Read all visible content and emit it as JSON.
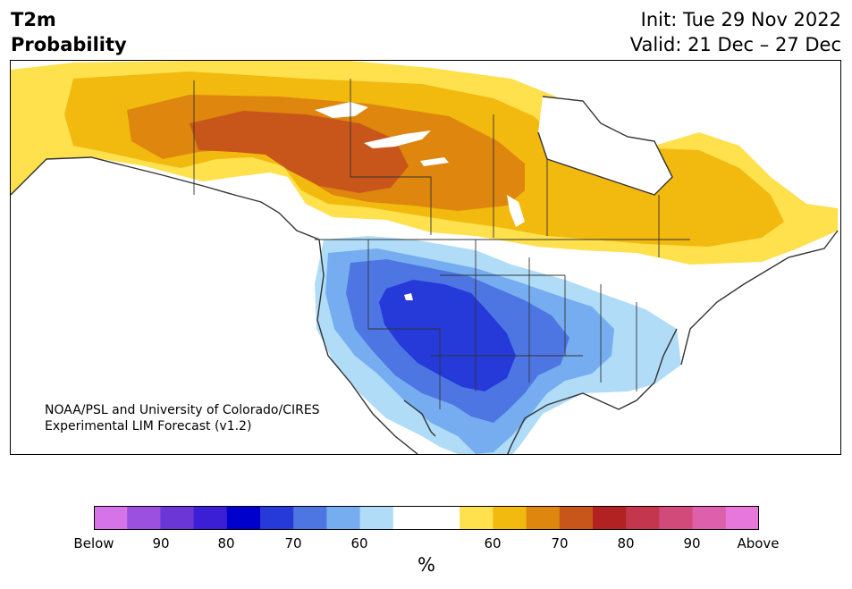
{
  "header": {
    "title_line1": "T2m",
    "title_line2": "Probability",
    "init": "Init: Tue 29 Nov 2022",
    "valid": "Valid: 21 Dec – 27 Dec"
  },
  "credit": {
    "line1": "NOAA/PSL and University of Colorado/CIRES",
    "line2": "Experimental LIM Forecast (v1.2)"
  },
  "colorbar": {
    "label": "%",
    "ticks": [
      "Below",
      "90",
      "80",
      "70",
      "60",
      "60",
      "70",
      "80",
      "90",
      "Above"
    ],
    "colors": [
      "#d673e8",
      "#9c50e0",
      "#6a37d6",
      "#3a1fd6",
      "#0000cc",
      "#2639d9",
      "#4d76e3",
      "#76adf0",
      "#b0dcf8",
      "#ffffff",
      "#ffffff",
      "#ffe04d",
      "#f2b90f",
      "#de860e",
      "#c8561a",
      "#b22222",
      "#c4364e",
      "#d14a7a",
      "#de60ac",
      "#e877dc"
    ]
  },
  "map": {
    "warm_colors": [
      "#ffe04d",
      "#f2b90f",
      "#de860e",
      "#c8561a"
    ],
    "cold_colors": [
      "#b0dcf8",
      "#76adf0",
      "#4d76e3",
      "#2639d9"
    ],
    "coast_color": "#333333"
  }
}
